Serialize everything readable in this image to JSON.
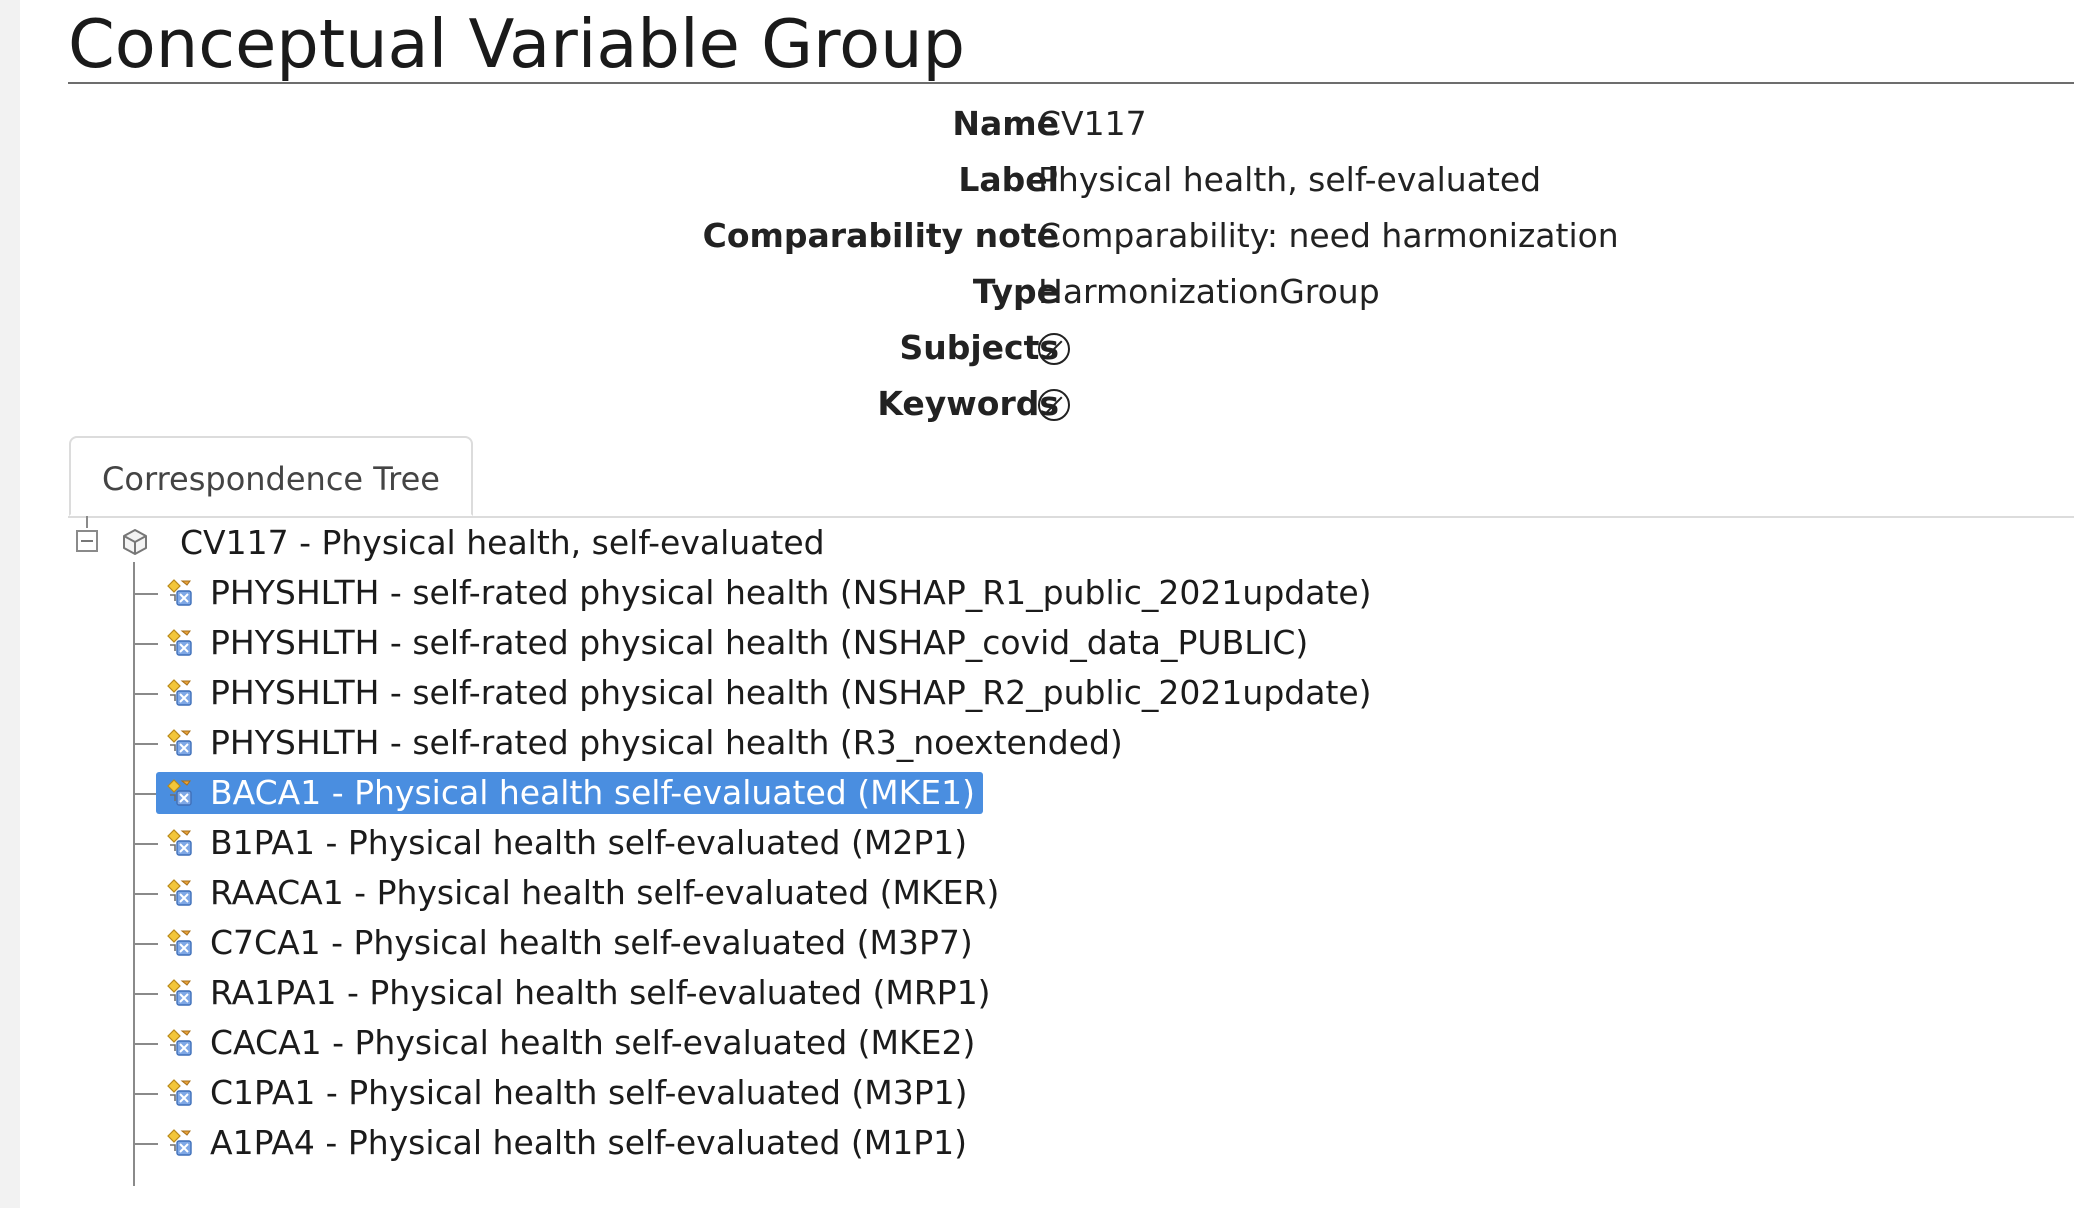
{
  "page": {
    "title": "Conceptual Variable Group"
  },
  "properties": [
    {
      "label": "Name",
      "value": "CV117"
    },
    {
      "label": "Label",
      "value": "Physical health, self-evaluated"
    },
    {
      "label": "Comparability note",
      "value": "Comparability: need harmonization"
    },
    {
      "label": "Type",
      "value": "HarmonizationGroup"
    },
    {
      "label": "Subjects",
      "value": null,
      "icon": "none-icon"
    },
    {
      "label": "Keywords",
      "value": null,
      "icon": "none-icon"
    }
  ],
  "tabs": [
    {
      "label": "Correspondence Tree",
      "active": true
    }
  ],
  "tree": {
    "root": {
      "label": "CV117 - Physical health, self-evaluated",
      "icon": "cube-icon",
      "expanded": true
    },
    "items": [
      {
        "label": "PHYSHLTH - self-rated physical health (NSHAP_R1_public_2021update)",
        "icon": "variable-icon",
        "selected": false
      },
      {
        "label": "PHYSHLTH - self-rated physical health (NSHAP_covid_data_PUBLIC)",
        "icon": "variable-icon",
        "selected": false
      },
      {
        "label": "PHYSHLTH - self-rated physical health (NSHAP_R2_public_2021update)",
        "icon": "variable-icon",
        "selected": false
      },
      {
        "label": "PHYSHLTH - self-rated physical health (R3_noextended)",
        "icon": "variable-icon",
        "selected": false
      },
      {
        "label": "BACA1 - Physical health self-evaluated (MKE1)",
        "icon": "variable-icon",
        "selected": true
      },
      {
        "label": "B1PA1 - Physical health self-evaluated (M2P1)",
        "icon": "variable-icon",
        "selected": false
      },
      {
        "label": "RAACA1 - Physical health self-evaluated (MKER)",
        "icon": "variable-icon",
        "selected": false
      },
      {
        "label": "C7CA1 - Physical health self-evaluated (M3P7)",
        "icon": "variable-icon",
        "selected": false
      },
      {
        "label": "RA1PA1 - Physical health self-evaluated (MRP1)",
        "icon": "variable-icon",
        "selected": false
      },
      {
        "label": "CACA1 - Physical health self-evaluated (MKE2)",
        "icon": "variable-icon",
        "selected": false
      },
      {
        "label": "C1PA1 - Physical health self-evaluated (M3P1)",
        "icon": "variable-icon",
        "selected": false
      },
      {
        "label": "A1PA4 - Physical health self-evaluated (M1P1)",
        "icon": "variable-icon",
        "selected": false
      }
    ]
  },
  "colors": {
    "selection": "#4a8ee0",
    "tree_lines": "#8a8a8a",
    "title_rule": "#6d6d6d"
  }
}
